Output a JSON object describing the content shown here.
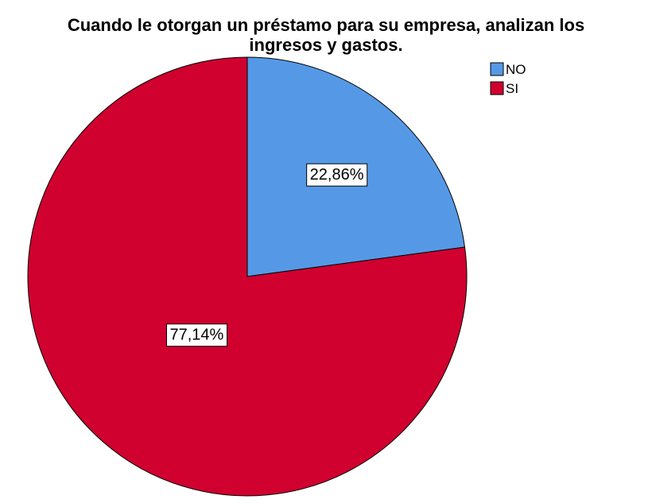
{
  "chart_data": {
    "type": "pie",
    "title": "Cuando le otorgan un préstamo para su empresa, analizan los ingresos y gastos.",
    "title_lines": [
      "Cuando le otorgan un préstamo para su empresa, analizan los",
      "ingresos y gastos."
    ],
    "slices": [
      {
        "label": "NO",
        "value": 22.86,
        "display": "22,86%",
        "color": "#5599e6"
      },
      {
        "label": "SI",
        "value": 77.14,
        "display": "77,14%",
        "color": "#d0002f"
      }
    ],
    "start_angle_deg": 0,
    "direction": "clockwise",
    "legend": {
      "position": "top-right",
      "entries": [
        "NO",
        "SI"
      ]
    }
  }
}
